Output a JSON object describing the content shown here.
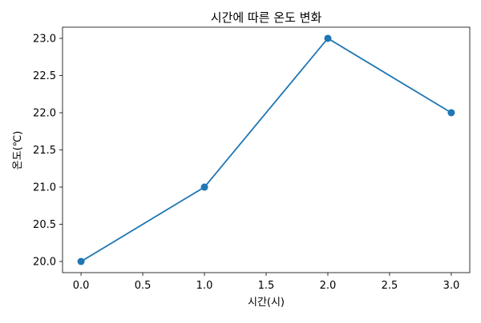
{
  "chart_data": {
    "type": "line",
    "title": "시간에 따른 온도 변화",
    "xlabel": "시간(시)",
    "ylabel": "온도(℃)",
    "x": [
      0,
      1,
      2,
      3
    ],
    "series": [
      {
        "values": [
          20,
          21,
          23,
          22
        ]
      }
    ],
    "xlim": [
      -0.15,
      3.15
    ],
    "ylim": [
      19.85,
      23.15
    ],
    "xticks": [
      0,
      0.5,
      1,
      1.5,
      2,
      2.5,
      3
    ],
    "xtick_labels": [
      "0.0",
      "0.5",
      "1.0",
      "1.5",
      "2.0",
      "2.5",
      "3.0"
    ],
    "yticks": [
      20,
      20.5,
      21,
      21.5,
      22,
      22.5,
      23
    ],
    "ytick_labels": [
      "20.0",
      "20.5",
      "21.0",
      "21.5",
      "22.0",
      "22.5",
      "23.0"
    ],
    "grid": false,
    "line_color": "#1f77b4",
    "marker": "circle"
  }
}
